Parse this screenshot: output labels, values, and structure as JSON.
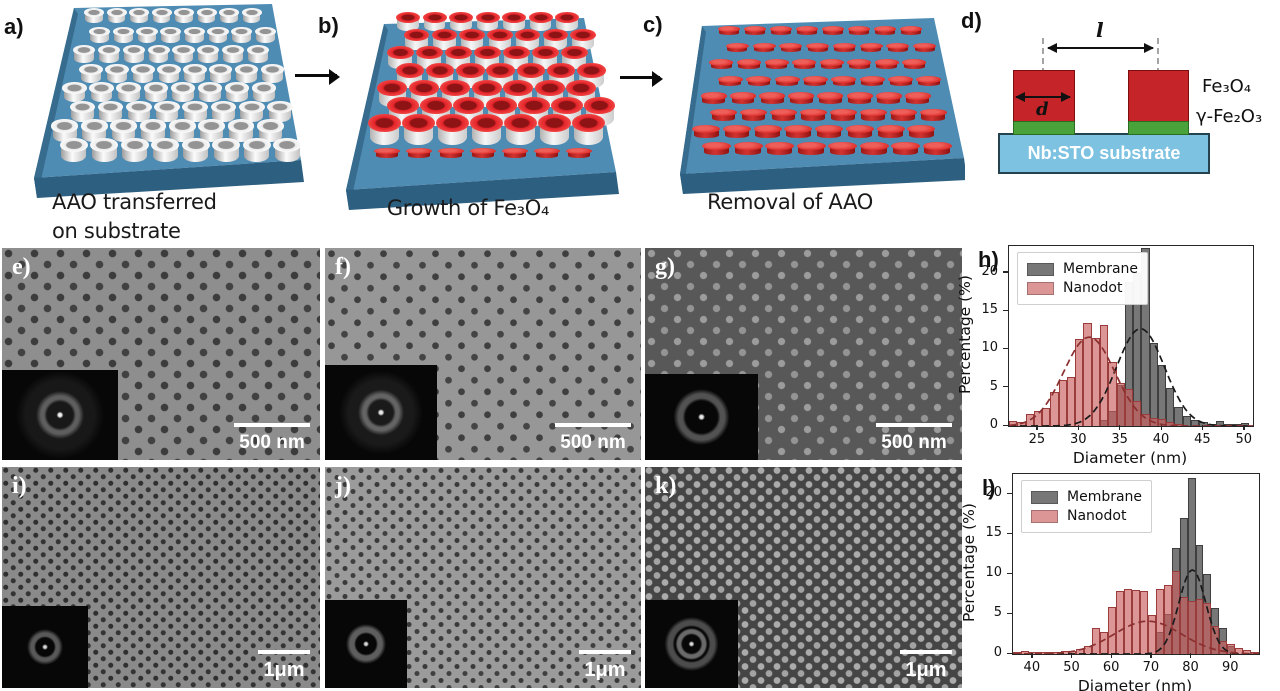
{
  "top_row": {
    "panel_a": {
      "letter": "a)",
      "caption_line1": "AAO transferred",
      "caption_line2": "on substrate"
    },
    "panel_b": {
      "letter": "b)",
      "caption": "Growth of Fe₃O₄"
    },
    "panel_c": {
      "letter": "c)",
      "caption": "Removal of AAO"
    },
    "panel_d": {
      "letter": "d)",
      "spacing_label": "l",
      "diameter_label": "d",
      "layer_top_label": "Fe₃O₄",
      "layer_interface_label": "γ-Fe₂O₃",
      "substrate_label": "Nb:STO substrate"
    }
  },
  "colors": {
    "substrate_top": "#4e8cb4",
    "substrate_front": "#2d5f80",
    "nanodot_red": "#d22b28",
    "interface_green": "#4aa23b",
    "sto_blue": "#7ec2e2",
    "membrane_gray": "#6e6e6e",
    "nanodot_hist_red": "#c96a6a"
  },
  "sem_row_top": [
    {
      "letter": "e)",
      "scalebar": "500 nm"
    },
    {
      "letter": "f)",
      "scalebar": "500 nm"
    },
    {
      "letter": "g)",
      "scalebar": "500 nm"
    }
  ],
  "sem_row_bottom": [
    {
      "letter": "i)",
      "scalebar": "1μm"
    },
    {
      "letter": "j)",
      "scalebar": "1μm"
    },
    {
      "letter": "k)",
      "scalebar": "1μm"
    }
  ],
  "chart_data": [
    {
      "panel_letter": "h)",
      "type": "bar",
      "subtype": "histogram",
      "title": "",
      "xlabel": "Diameter (nm)",
      "ylabel": "Percentage (%)",
      "xlim": [
        21.5,
        51
      ],
      "ylim": [
        0,
        23.5
      ],
      "xticks": [
        25,
        30,
        35,
        40,
        45,
        50
      ],
      "yticks": [
        0,
        5,
        10,
        15,
        20
      ],
      "bin_width": 1,
      "grid": false,
      "legend_position": "upper left",
      "series": [
        {
          "name": "Membrane",
          "fill": "rgba(100,100,100,0.88)",
          "edge": "#3f3f3f",
          "bin_centers": [
            33,
            34,
            35,
            36,
            37,
            38,
            39,
            40,
            41,
            42,
            43,
            44,
            45,
            46,
            47,
            48,
            49,
            50
          ],
          "values": [
            0.8,
            1.9,
            5.4,
            18.8,
            20.0,
            23.3,
            10.9,
            7.9,
            4.9,
            2.5,
            1.3,
            0.8,
            0.5,
            0.3,
            0.6,
            0.3,
            0.2,
            0.4
          ]
        },
        {
          "name": "Nanodot",
          "fill": "rgba(202,96,96,0.66)",
          "edge": "#9a3c3c",
          "bin_centers": [
            22,
            23,
            24,
            25,
            26,
            27,
            28,
            29,
            30,
            31,
            32,
            33,
            34,
            35,
            36,
            37,
            38,
            39,
            40,
            41,
            42
          ],
          "values": [
            0.7,
            0.5,
            1.6,
            2.0,
            2.4,
            4.4,
            6.0,
            6.4,
            11.4,
            13.5,
            11.5,
            13.2,
            8.3,
            5.6,
            4.8,
            3.2,
            1.6,
            1.1,
            0.9,
            0.5,
            0.3
          ]
        }
      ],
      "fits": [
        {
          "series": "Membrane",
          "center": 37.4,
          "peak": 12.7,
          "sigma": 2.9,
          "color": "#1a1a1a"
        },
        {
          "series": "Nanodot",
          "center": 31.2,
          "peak": 11.6,
          "sigma": 3.1,
          "color": "#8b2f2f"
        }
      ]
    },
    {
      "panel_letter": "l)",
      "type": "bar",
      "subtype": "histogram",
      "title": "",
      "xlabel": "Diameter (nm)",
      "ylabel": "Percentage (%)",
      "xlim": [
        35,
        97
      ],
      "ylim": [
        0,
        22.5
      ],
      "xticks": [
        40,
        50,
        60,
        70,
        80,
        90
      ],
      "yticks": [
        0,
        5,
        10,
        15,
        20
      ],
      "bin_width": 2,
      "grid": false,
      "legend_position": "upper left",
      "series": [
        {
          "name": "Membrane",
          "fill": "rgba(100,100,100,0.88)",
          "edge": "#3f3f3f",
          "bin_centers": [
            72,
            74,
            76,
            78,
            80,
            82,
            84,
            86,
            88,
            90
          ],
          "values": [
            2.7,
            5.0,
            13.3,
            17.0,
            22.0,
            13.6,
            10.0,
            5.7,
            3.3,
            1.0
          ]
        },
        {
          "name": "Nanodot",
          "fill": "rgba(202,96,96,0.66)",
          "edge": "#9a3c3c",
          "bin_centers": [
            36,
            38,
            40,
            42,
            44,
            46,
            48,
            50,
            52,
            54,
            56,
            58,
            60,
            62,
            64,
            66,
            68,
            70,
            72,
            74,
            76,
            78,
            80,
            82,
            84,
            86,
            88,
            90,
            92,
            94,
            96
          ],
          "values": [
            0.3,
            0.4,
            0.3,
            0.3,
            0.25,
            0.3,
            0.4,
            0.35,
            0.6,
            1.0,
            3.2,
            2.7,
            5.9,
            7.9,
            8.1,
            8.0,
            7.9,
            4.9,
            8.1,
            8.6,
            10.4,
            7.1,
            6.6,
            6.9,
            6.4,
            3.5,
            1.6,
            1.3,
            0.7,
            0.5,
            0.3
          ]
        }
      ],
      "fits": [
        {
          "series": "Membrane",
          "center": 80.2,
          "peak": 10.5,
          "sigma": 3.4,
          "color": "#1a1a1a"
        },
        {
          "series": "Nanodot",
          "center": 69.0,
          "peak": 4.1,
          "sigma": 8.5,
          "color": "#8b2f2f"
        }
      ]
    }
  ]
}
